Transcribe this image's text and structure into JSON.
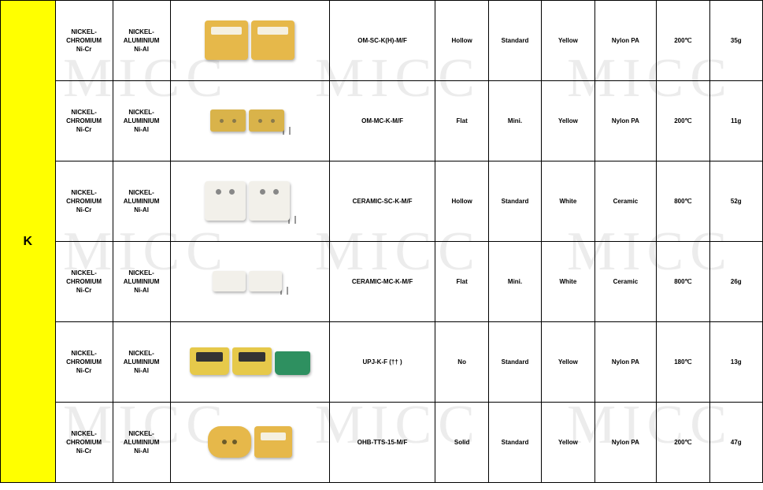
{
  "watermark": "MICC",
  "type_label": "K",
  "columns_meta": {
    "col1": "material_positive",
    "col2": "material_negative",
    "col3": "image",
    "col4": "part_number",
    "col5": "pin_style",
    "col6": "size",
    "col7": "color",
    "col8": "body_material",
    "col9": "max_temp",
    "col10": "weight"
  },
  "rows": [
    {
      "mat1_l1": "NICKEL-",
      "mat1_l2": "CHROMIUM",
      "mat1_l3": "Ni-Cr",
      "mat2_l1": "NICKEL-",
      "mat2_l2": "ALUMINIUM",
      "mat2_l3": "Ni-Al",
      "part": "OM-SC-K(H)-M/F",
      "pin": "Hollow",
      "size": "Standard",
      "color": "Yellow",
      "body": "Nylon PA",
      "temp": "200℃",
      "weight": "35g",
      "img_style": "yellow-big"
    },
    {
      "mat1_l1": "NICKEL-",
      "mat1_l2": "CHROMIUM",
      "mat1_l3": "Ni-Cr",
      "mat2_l1": "NICKEL-",
      "mat2_l2": "ALUMINIUM",
      "mat2_l3": "Ni-Al",
      "part": "OM-MC-K-M/F",
      "pin": "Flat",
      "size": "Mini.",
      "color": "Yellow",
      "body": "Nylon PA",
      "temp": "200℃",
      "weight": "11g",
      "img_style": "yellow-small"
    },
    {
      "mat1_l1": "NICKEL-",
      "mat1_l2": "CHROMIUM",
      "mat1_l3": "Ni-Cr",
      "mat2_l1": "NICKEL-",
      "mat2_l2": "ALUMINIUM",
      "mat2_l3": "Ni-Al",
      "part": "CERAMIC-SC-K-M/F",
      "pin": "Hollow",
      "size": "Standard",
      "color": "White",
      "body": "Ceramic",
      "temp": "800℃",
      "weight": "52g",
      "img_style": "white-big"
    },
    {
      "mat1_l1": "NICKEL-",
      "mat1_l2": "CHROMIUM",
      "mat1_l3": "Ni-Cr",
      "mat2_l1": "NICKEL-",
      "mat2_l2": "ALUMINIUM",
      "mat2_l3": "Ni-Al",
      "part": "CERAMIC-MC-K-M/F",
      "pin": "Flat",
      "size": "Mini.",
      "color": "White",
      "body": "Ceramic",
      "temp": "800℃",
      "weight": "26g",
      "img_style": "white-small"
    },
    {
      "mat1_l1": "NICKEL-",
      "mat1_l2": "CHROMIUM",
      "mat1_l3": "Ni-Cr",
      "mat2_l1": "NICKEL-",
      "mat2_l2": "ALUMINIUM",
      "mat2_l3": "Ni-Al",
      "part": "UPJ-K-F (†† )",
      "pin": "No",
      "size": "Standard",
      "color": "Yellow",
      "body": "Nylon PA",
      "temp": "180℃",
      "weight": "13g",
      "img_style": "panel"
    },
    {
      "mat1_l1": "NICKEL-",
      "mat1_l2": "CHROMIUM",
      "mat1_l3": "Ni-Cr",
      "mat2_l1": "NICKEL-",
      "mat2_l2": "ALUMINIUM",
      "mat2_l3": "Ni-Al",
      "part": "OHB-TTS-15-M/F",
      "pin": "Solid",
      "size": "Standard",
      "color": "Yellow",
      "body": "Nylon PA",
      "temp": "200℃",
      "weight": "47g",
      "img_style": "ohb"
    }
  ],
  "colors": {
    "type_bg": "#ffff00",
    "border": "#000000",
    "connector_yellow": "#e6b84a",
    "connector_white": "#f2f0ea",
    "connector_green": "#2e9060",
    "watermark_color": "rgba(200,200,200,0.35)"
  }
}
